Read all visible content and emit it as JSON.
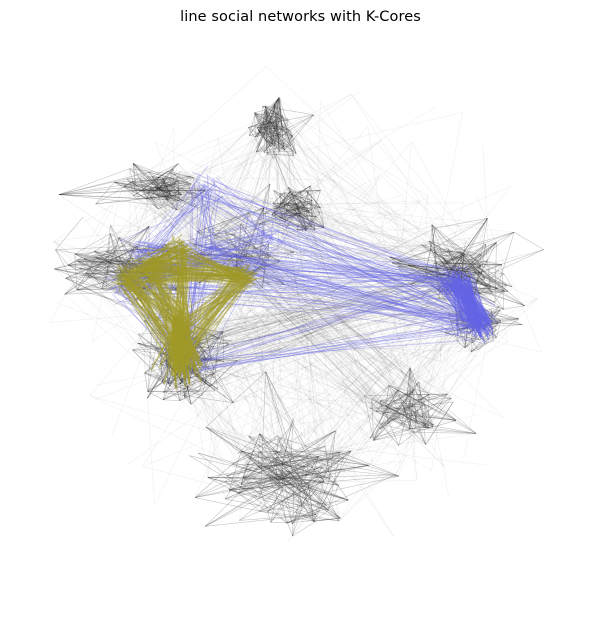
{
  "figure": {
    "title": "line social networks with K-Cores"
  },
  "colors": {
    "background": "#ffffff",
    "base_edges": "#2b2b2b",
    "inner_core": "#6464e6",
    "innermost_core": "#a09a28"
  },
  "graph": {
    "layout": "force-directed",
    "axes": "off",
    "edge_layers": [
      "all-edges",
      "k-core-edges",
      "max-k-core-edges"
    ]
  }
}
